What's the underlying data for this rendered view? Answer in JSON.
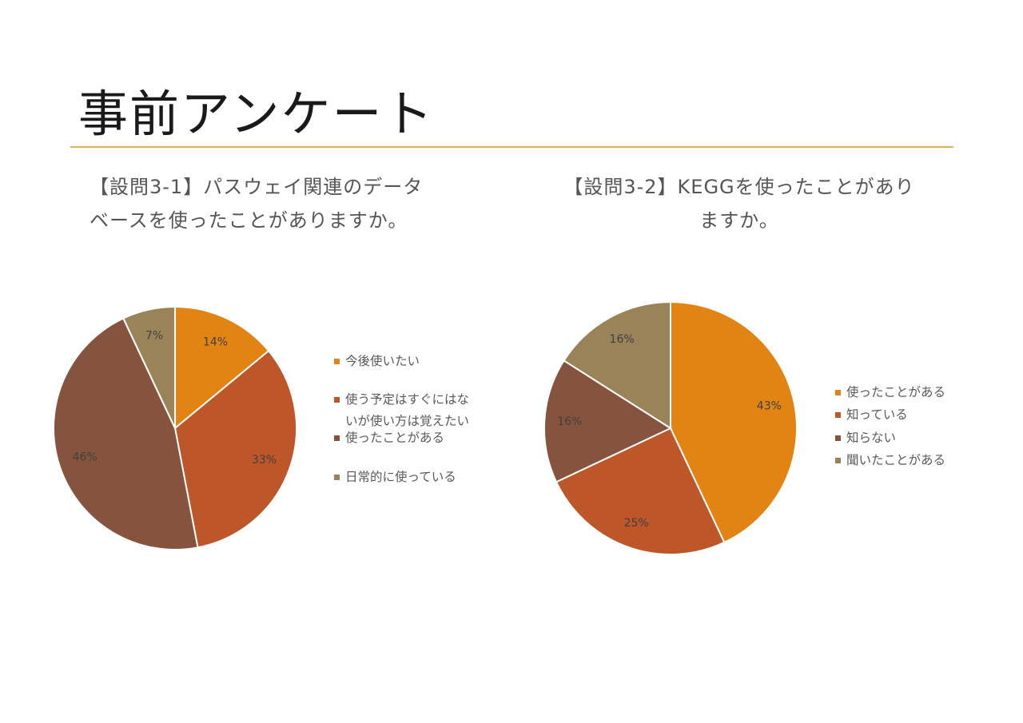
{
  "slide": {
    "title": "事前アンケート"
  },
  "charts": [
    {
      "question_line1": "【設問3-1】パスウェイ関連のデータ",
      "question_line2": "ベースを使ったことがありますか。"
    },
    {
      "question_line1": "【設問3-2】KEGGを使ったことがあり",
      "question_line2": "ますか。"
    }
  ],
  "chart_data": [
    {
      "type": "pie",
      "slices": [
        {
          "label": "今後使いたい",
          "value": 14,
          "display": "14%",
          "color": "#e28413"
        },
        {
          "label": "使う予定はすぐにはないが使い方は覚えたい",
          "label_line1": "使う予定はすぐにはな",
          "label_line2": "いが使い方は覚えたい",
          "value": 33,
          "display": "33%",
          "color": "#bd572a"
        },
        {
          "label": "使ったことがある",
          "value": 46,
          "display": "46%",
          "color": "#86543e"
        },
        {
          "label": "日常的に使っている",
          "value": 7,
          "display": "7%",
          "color": "#9b8359"
        }
      ],
      "legend_position": "right"
    },
    {
      "type": "pie",
      "slices": [
        {
          "label": "使ったことがある",
          "value": 43,
          "display": "43%",
          "color": "#e28413"
        },
        {
          "label": "知っている",
          "value": 25,
          "display": "25%",
          "color": "#bd572a"
        },
        {
          "label": "知らない",
          "value": 16,
          "display": "16%",
          "color": "#86543e"
        },
        {
          "label": "聞いたことがある",
          "value": 16,
          "display": "16%",
          "color": "#9b8359"
        }
      ],
      "legend_position": "right"
    }
  ]
}
